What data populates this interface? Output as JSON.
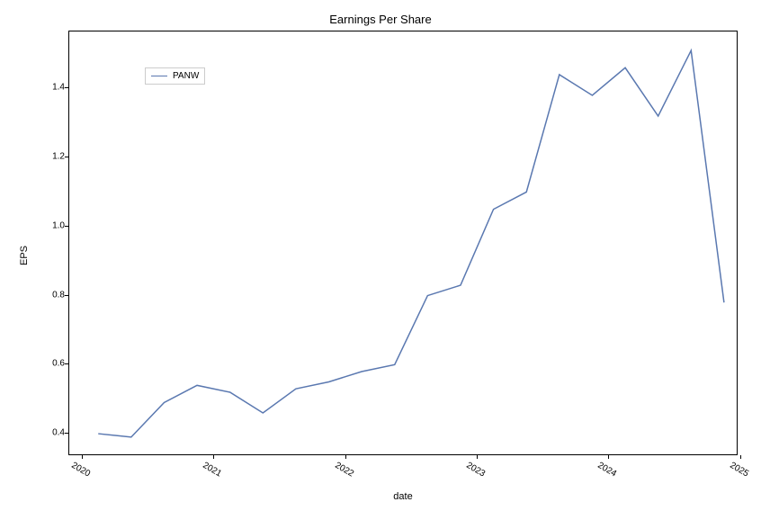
{
  "chart": {
    "type": "line",
    "title": "Earnings Per Share",
    "title_fontsize": 13,
    "xlabel": "date",
    "ylabel": "EPS",
    "label_fontsize": 11,
    "background_color": "#ffffff",
    "border_color": "#000000",
    "tick_fontsize": 10,
    "x_domain": [
      2019.9,
      2024.98
    ],
    "y_domain": [
      0.335,
      1.565
    ],
    "yticks": [
      0.4,
      0.6,
      0.8,
      1.0,
      1.2,
      1.4
    ],
    "xticks": [
      {
        "val": 2020,
        "label": "2020"
      },
      {
        "val": 2021,
        "label": "2021"
      },
      {
        "val": 2022,
        "label": "2022"
      },
      {
        "val": 2023,
        "label": "2023"
      },
      {
        "val": 2024,
        "label": "2024"
      },
      {
        "val": 2025,
        "label": "2025"
      }
    ],
    "series": [
      {
        "name": "PANW",
        "color": "#5a78b0",
        "line_width": 1.5,
        "data": [
          {
            "x": 2020.12,
            "y": 0.4
          },
          {
            "x": 2020.37,
            "y": 0.39
          },
          {
            "x": 2020.62,
            "y": 0.49
          },
          {
            "x": 2020.87,
            "y": 0.54
          },
          {
            "x": 2021.12,
            "y": 0.52
          },
          {
            "x": 2021.37,
            "y": 0.46
          },
          {
            "x": 2021.62,
            "y": 0.53
          },
          {
            "x": 2021.87,
            "y": 0.55
          },
          {
            "x": 2022.12,
            "y": 0.58
          },
          {
            "x": 2022.37,
            "y": 0.6
          },
          {
            "x": 2022.62,
            "y": 0.8
          },
          {
            "x": 2022.87,
            "y": 0.83
          },
          {
            "x": 2023.12,
            "y": 1.05
          },
          {
            "x": 2023.37,
            "y": 1.1
          },
          {
            "x": 2023.62,
            "y": 1.44
          },
          {
            "x": 2023.87,
            "y": 1.38
          },
          {
            "x": 2024.12,
            "y": 1.46
          },
          {
            "x": 2024.37,
            "y": 1.32
          },
          {
            "x": 2024.62,
            "y": 1.51
          },
          {
            "x": 2024.87,
            "y": 0.78
          }
        ]
      }
    ],
    "legend": {
      "position": "upper-left",
      "border_color": "#cccccc",
      "background_color": "#ffffff"
    }
  }
}
